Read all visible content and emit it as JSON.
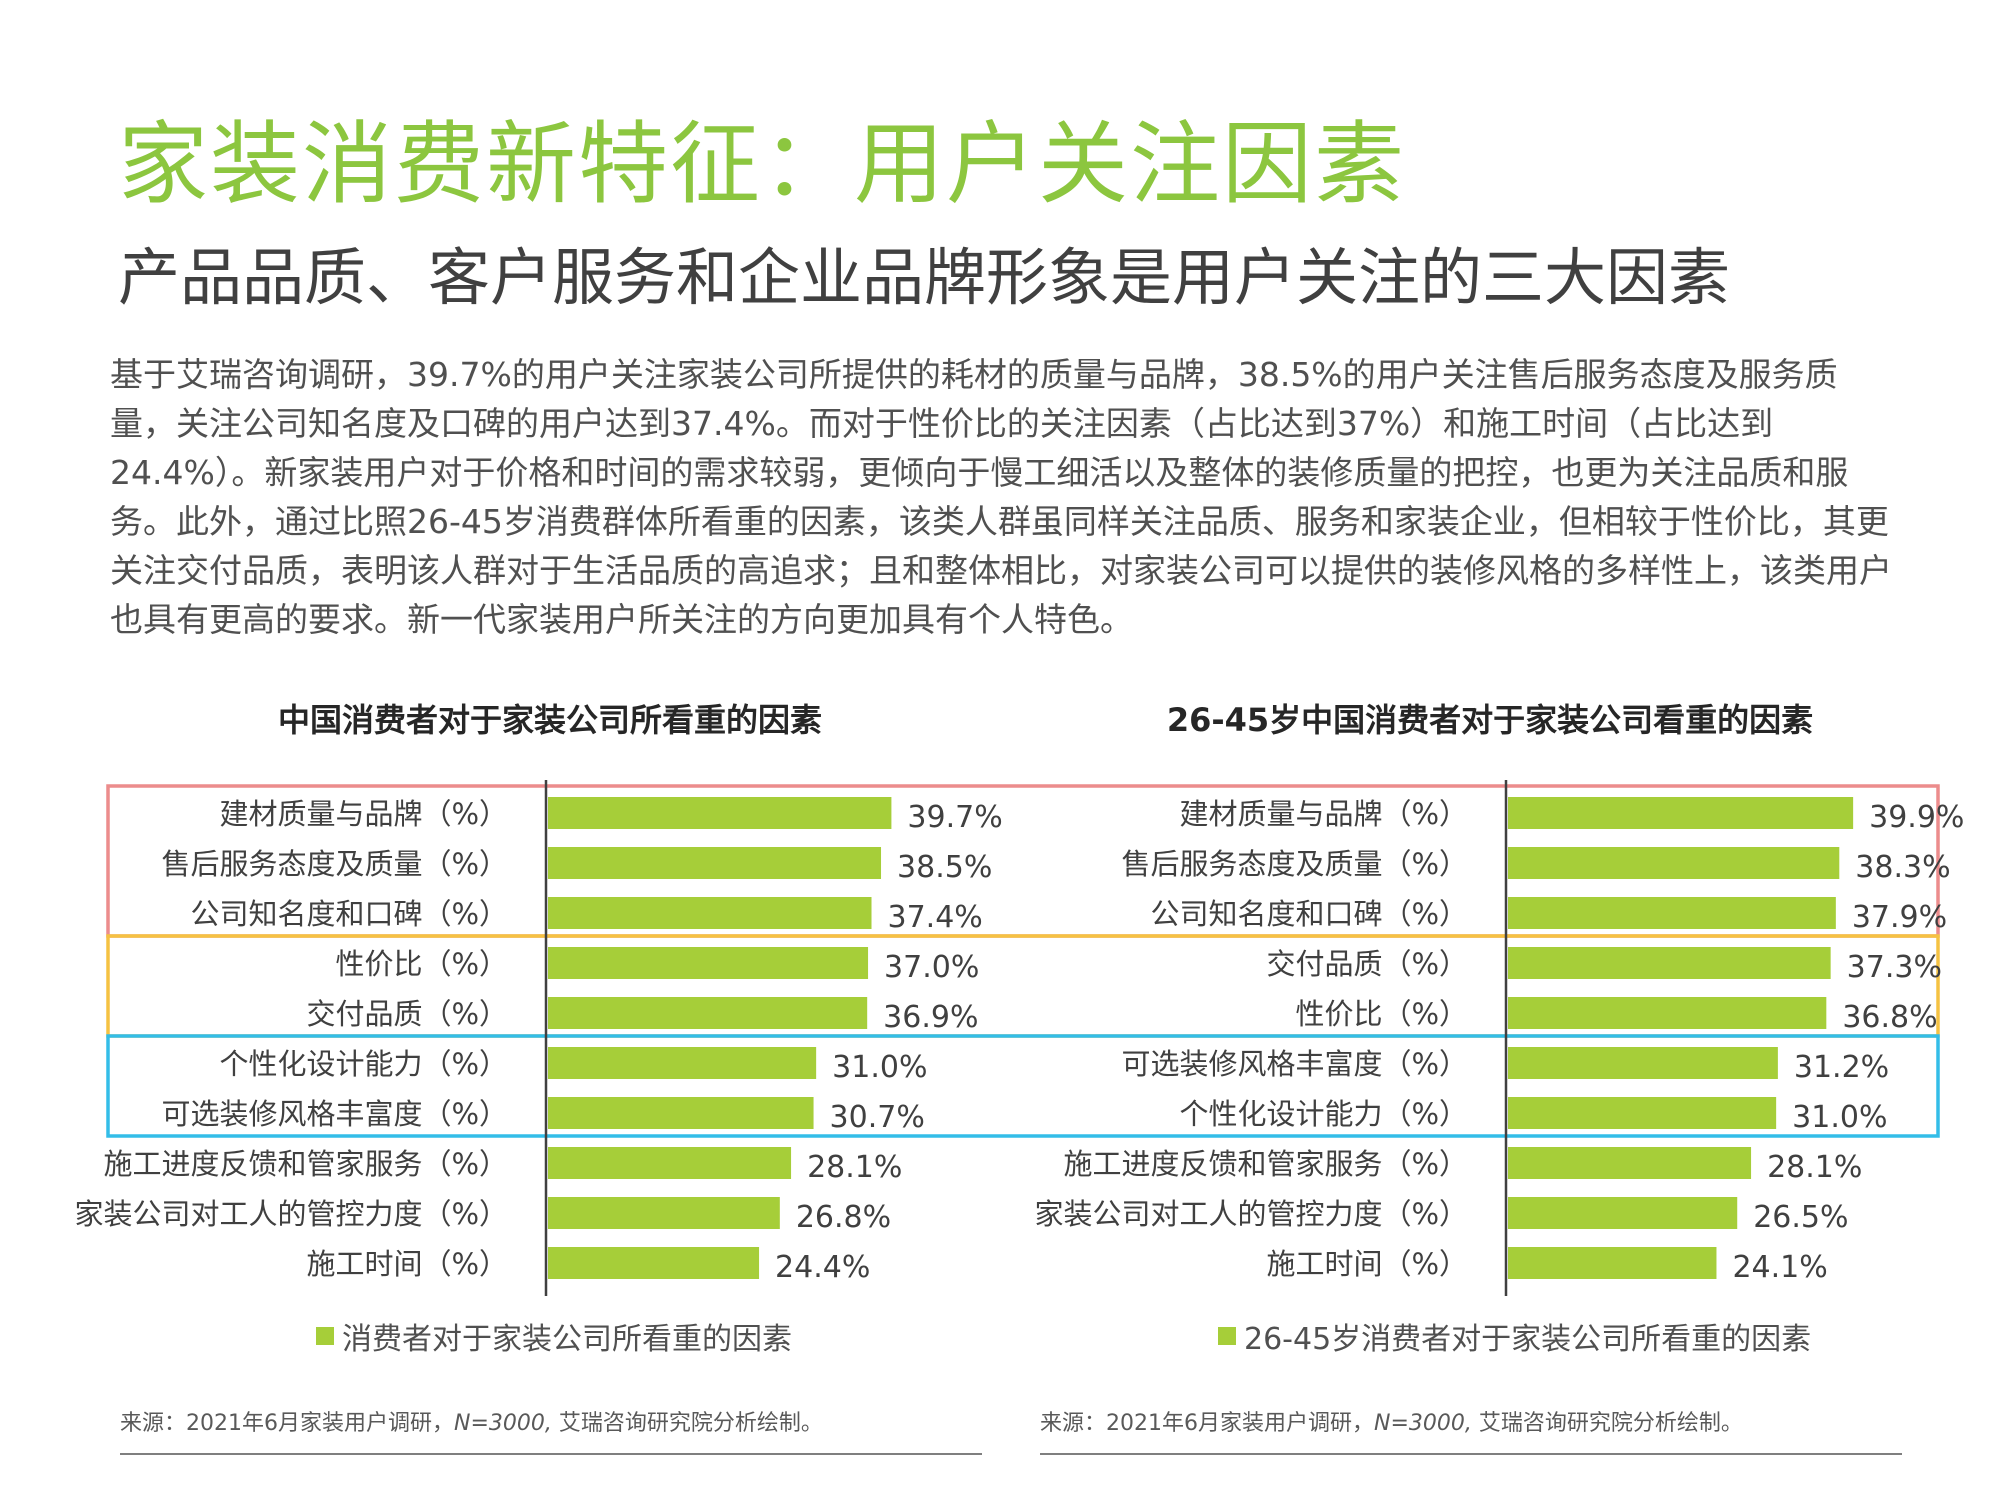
{
  "header": {
    "title": "家装消费新特征：用户关注因素",
    "subtitle": "产品品质、客户服务和企业品牌形象是用户关注的三大因素"
  },
  "body_text": "基于艾瑞咨询调研，39.7%的用户关注家装公司所提供的耗材的质量与品牌，38.5%的用户关注售后服务态度及服务质量，关注公司知名度及口碑的用户达到37.4%。而对于性价比的关注因素（占比达到37%）和施工时间（占比达到24.4%）。新家装用户对于价格和时间的需求较弱，更倾向于慢工细活以及整体的装修质量的把控，也更为关注品质和服务。此外，通过比照26-45岁消费群体所看重的因素，该类人群虽同样关注品质、服务和家装企业，但相较于性价比，其更关注交付品质，表明该人群对于生活品质的高追求；且和整体相比，对家装公司可以提供的装修风格的多样性上，该类用户也具有更高的要求。新一代家装用户所关注的方向更加具有个人特色。",
  "colors": {
    "bar": "#a6ce39",
    "title_green": "#8cc63f",
    "box_red": "#ec8c8c",
    "box_yellow": "#f5c242",
    "box_blue": "#33bde8"
  },
  "chart_data": [
    {
      "type": "bar",
      "orientation": "horizontal",
      "title": "中国消费者对于家装公司所看重的因素",
      "categories": [
        "建材质量与品牌（%）",
        "售后服务态度及质量（%）",
        "公司知名度和口碑（%）",
        "性价比（%）",
        "交付品质（%）",
        "个性化设计能力（%）",
        "可选装修风格丰富度（%）",
        "施工进度反馈和管家服务（%）",
        "家装公司对工人的管控力度（%）",
        "施工时间（%）"
      ],
      "series": [
        {
          "name": "消费者对于家装公司所看重的因素",
          "values": [
            39.7,
            38.5,
            37.4,
            37.0,
            36.9,
            31.0,
            30.7,
            28.1,
            26.8,
            24.4
          ]
        }
      ],
      "value_labels": [
        "39.7%",
        "38.5%",
        "37.4%",
        "37.0%",
        "36.9%",
        "31.0%",
        "30.7%",
        "28.1%",
        "26.8%",
        "24.4%"
      ],
      "xlim": [
        0,
        60
      ],
      "highlight_groups": [
        {
          "color": "red",
          "rows": [
            0,
            2
          ]
        },
        {
          "color": "yellow",
          "rows": [
            3,
            4
          ]
        },
        {
          "color": "blue",
          "rows": [
            5,
            6
          ]
        }
      ],
      "legend": "bottom",
      "source": {
        "prefix": "来源：2021年6月家装用户调研，",
        "n": "N=3000,",
        "suffix": " 艾瑞咨询研究院分析绘制。"
      }
    },
    {
      "type": "bar",
      "orientation": "horizontal",
      "title": "26-45岁中国消费者对于家装公司看重的因素",
      "categories": [
        "建材质量与品牌（%）",
        "售后服务态度及质量（%）",
        "公司知名度和口碑（%）",
        "交付品质（%）",
        "性价比（%）",
        "可选装修风格丰富度（%）",
        "个性化设计能力（%）",
        "施工进度反馈和管家服务（%）",
        "家装公司对工人的管控力度（%）",
        "施工时间（%）"
      ],
      "series": [
        {
          "name": "26-45岁消费者对于家装公司所看重的因素",
          "values": [
            39.9,
            38.3,
            37.9,
            37.3,
            36.8,
            31.2,
            31.0,
            28.1,
            26.5,
            24.1
          ]
        }
      ],
      "value_labels": [
        "39.9%",
        "38.3%",
        "37.9%",
        "37.3%",
        "36.8%",
        "31.2%",
        "31.0%",
        "28.1%",
        "26.5%",
        "24.1%"
      ],
      "xlim": [
        0,
        60
      ],
      "highlight_groups": [
        {
          "color": "red",
          "rows": [
            0,
            2
          ]
        },
        {
          "color": "yellow",
          "rows": [
            3,
            4
          ]
        },
        {
          "color": "blue",
          "rows": [
            5,
            6
          ]
        }
      ],
      "legend": "bottom",
      "source": {
        "prefix": "来源：2021年6月家装用户调研，",
        "n": "N=3000,",
        "suffix": " 艾瑞咨询研究院分析绘制。"
      }
    }
  ]
}
